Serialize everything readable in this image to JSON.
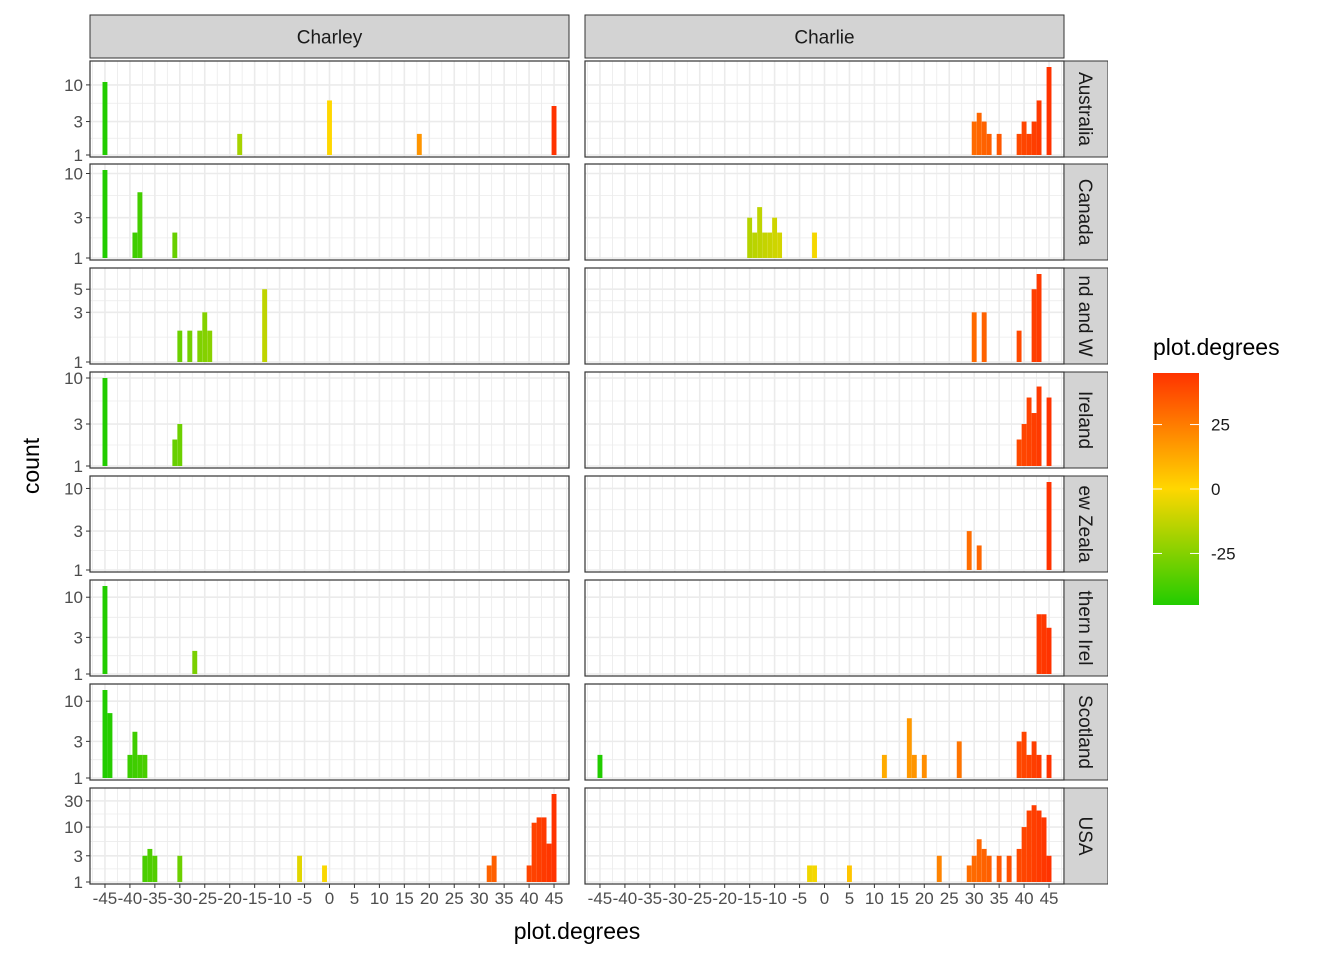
{
  "chart_data": {
    "type": "bar",
    "title": "",
    "xlabel": "plot.degrees",
    "ylabel": "count",
    "y_scale": "log10",
    "grid": true,
    "facet_cols": [
      "Charley",
      "Charlie"
    ],
    "facet_rows": [
      "Australia",
      "Canada",
      "England and Wales",
      "Ireland",
      "New Zealand",
      "Northern Ireland",
      "Scotland",
      "USA"
    ],
    "facet_rows_visible": [
      "Australia",
      "Canada",
      "nd and W",
      "Ireland",
      "ew Zeala",
      "thern Irel",
      "Scotland",
      "USA"
    ],
    "xlim": [
      -48,
      48
    ],
    "x_ticks": [
      -45,
      -40,
      -35,
      -30,
      -25,
      -20,
      -15,
      -10,
      -5,
      0,
      5,
      10,
      15,
      20,
      25,
      30,
      35,
      40,
      45
    ],
    "x_tick_labels": [
      "-45",
      "-40",
      "-35",
      "-30",
      "-25",
      "-20",
      "-15",
      "-10",
      "-5",
      "0",
      "5",
      "10",
      "15",
      "20",
      "25",
      "30",
      "35",
      "40",
      "45"
    ],
    "legend": {
      "title": "plot.degrees",
      "position": "right",
      "labels": [
        "25",
        "0",
        "-25"
      ],
      "values": [
        25,
        0,
        -25
      ],
      "range": [
        -45,
        45
      ],
      "color_low": "#22cc00",
      "color_mid": "#ffd700",
      "color_high": "#ff3300"
    },
    "rows": [
      {
        "row": "Australia",
        "ylim": [
          1,
          18
        ],
        "y_ticks": [
          1,
          3,
          10
        ],
        "y_tick_labels": [
          "1",
          "3",
          "10"
        ],
        "panels": [
          {
            "col": "Charley",
            "x": [
              -45,
              -18,
              0,
              18,
              45
            ],
            "values": [
              11,
              2,
              6,
              2,
              5
            ]
          },
          {
            "col": "Charlie",
            "x": [
              30,
              31,
              32,
              33,
              35,
              39,
              40,
              41,
              42,
              43,
              45
            ],
            "values": [
              3,
              4,
              3,
              2,
              2,
              2,
              3,
              2,
              3,
              6,
              18
            ]
          }
        ]
      },
      {
        "row": "Canada",
        "ylim": [
          1,
          11
        ],
        "y_ticks": [
          1,
          3,
          10
        ],
        "y_tick_labels": [
          "1",
          "3",
          "10"
        ],
        "panels": [
          {
            "col": "Charley",
            "x": [
              -45,
              -39,
              -38,
              -31
            ],
            "values": [
              11,
              2,
              6,
              2
            ]
          },
          {
            "col": "Charlie",
            "x": [
              -15,
              -14,
              -13,
              -12,
              -11,
              -10,
              -9,
              -2
            ],
            "values": [
              3,
              2,
              4,
              2,
              2,
              3,
              2,
              2
            ]
          }
        ]
      },
      {
        "row": "England and Wales",
        "ylim": [
          1,
          7
        ],
        "y_ticks": [
          1,
          3,
          5
        ],
        "y_tick_labels": [
          "1",
          "3",
          "5"
        ],
        "panels": [
          {
            "col": "Charley",
            "x": [
              -30,
              -28,
              -26,
              -25,
              -24,
              -13
            ],
            "values": [
              2,
              2,
              2,
              3,
              2,
              5
            ]
          },
          {
            "col": "Charlie",
            "x": [
              30,
              32,
              39,
              42,
              43
            ],
            "values": [
              3,
              3,
              2,
              5,
              7
            ]
          }
        ]
      },
      {
        "row": "Ireland",
        "ylim": [
          1,
          10
        ],
        "y_ticks": [
          1,
          3,
          10
        ],
        "y_tick_labels": [
          "1",
          "3",
          "10"
        ],
        "panels": [
          {
            "col": "Charley",
            "x": [
              -45,
              -31,
              -30
            ],
            "values": [
              10,
              2,
              3
            ]
          },
          {
            "col": "Charlie",
            "x": [
              39,
              40,
              41,
              42,
              43,
              45
            ],
            "values": [
              2,
              3,
              6,
              4,
              8,
              6
            ]
          }
        ]
      },
      {
        "row": "New Zealand",
        "ylim": [
          1,
          12
        ],
        "y_ticks": [
          1,
          3,
          10
        ],
        "y_tick_labels": [
          "1",
          "3",
          "10"
        ],
        "panels": [
          {
            "col": "Charley",
            "x": [],
            "values": []
          },
          {
            "col": "Charlie",
            "x": [
              29,
              31,
              45
            ],
            "values": [
              3,
              2,
              12
            ]
          }
        ]
      },
      {
        "row": "Northern Ireland",
        "ylim": [
          1,
          14
        ],
        "y_ticks": [
          1,
          3,
          10
        ],
        "y_tick_labels": [
          "1",
          "3",
          "10"
        ],
        "panels": [
          {
            "col": "Charley",
            "x": [
              -45,
              -27
            ],
            "values": [
              14,
              2
            ]
          },
          {
            "col": "Charlie",
            "x": [
              43,
              44,
              45
            ],
            "values": [
              6,
              6,
              4
            ]
          }
        ]
      },
      {
        "row": "Scotland",
        "ylim": [
          1,
          14
        ],
        "y_ticks": [
          1,
          3,
          10
        ],
        "y_tick_labels": [
          "1",
          "3",
          "10"
        ],
        "panels": [
          {
            "col": "Charley",
            "x": [
              -45,
              -44,
              -40,
              -39,
              -38,
              -37
            ],
            "values": [
              14,
              7,
              2,
              4,
              2,
              2
            ]
          },
          {
            "col": "Charlie",
            "x": [
              -45,
              12,
              17,
              18,
              20,
              27,
              39,
              40,
              41,
              42,
              43,
              45
            ],
            "values": [
              2,
              2,
              6,
              2,
              2,
              3,
              3,
              4,
              2,
              3,
              2,
              2
            ]
          }
        ]
      },
      {
        "row": "USA",
        "ylim": [
          1,
          40
        ],
        "y_ticks": [
          1,
          3,
          10,
          30
        ],
        "y_tick_labels": [
          "1",
          "3",
          "10",
          "30"
        ],
        "panels": [
          {
            "col": "Charley",
            "x": [
              -37,
              -36,
              -35,
              -30,
              -6,
              -1,
              32,
              33,
              40,
              41,
              42,
              43,
              44,
              45
            ],
            "values": [
              3,
              4,
              3,
              3,
              3,
              2,
              2,
              3,
              2,
              12,
              15,
              15,
              5,
              40
            ]
          },
          {
            "col": "Charlie",
            "x": [
              -3,
              -2,
              5,
              23,
              29,
              30,
              31,
              32,
              33,
              35,
              37,
              39,
              40,
              41,
              42,
              43,
              44,
              45
            ],
            "values": [
              2,
              2,
              2,
              3,
              2,
              3,
              6,
              4,
              3,
              3,
              3,
              4,
              10,
              20,
              25,
              20,
              15,
              3
            ]
          }
        ]
      }
    ]
  }
}
